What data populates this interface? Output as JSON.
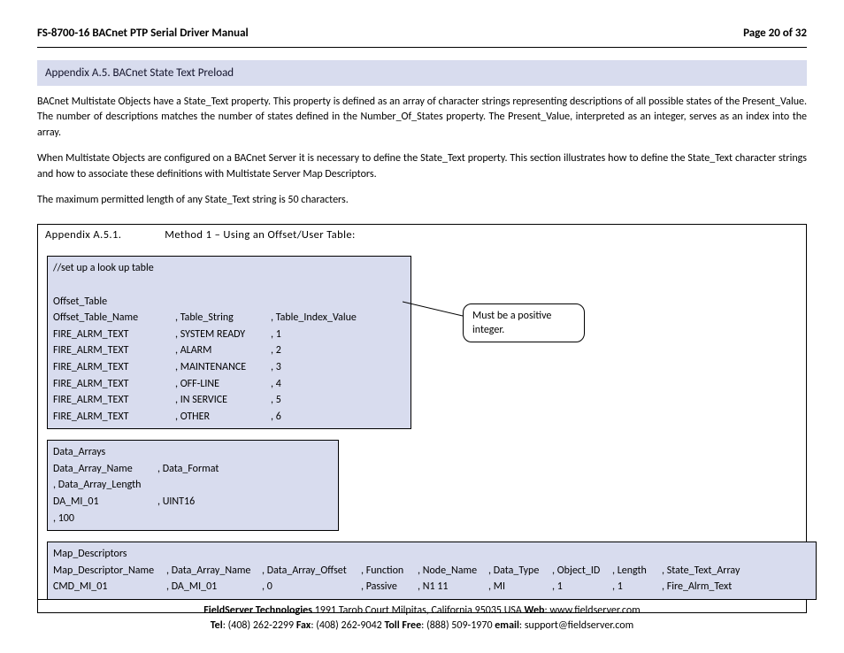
{
  "header": {
    "title": "FS-8700-16 BACnet PTP Serial Driver Manual",
    "page": "Page 20 of 32"
  },
  "section": {
    "title": "Appendix A.5.  BACnet State Text Preload",
    "para1": "BACnet Multistate Objects have a State_Text property.  This property is defined as an array of character strings representing descriptions of all possible states of the Present_Value. The number of descriptions matches the number of states defined in the Number_Of_States property. The Present_Value, interpreted as an integer, serves as an index into the array.",
    "para2": "When Multistate Objects are configured on a BACnet Server it is necessary to define the State_Text property. This section illustrates how to define the State_Text character strings and how to associate these definitions with Multistate Server Map Descriptors.",
    "para3": "The maximum permitted length of any State_Text string is 50 characters."
  },
  "subsection": {
    "left": "Appendix A.5.1.",
    "right": "Method 1 – Using an Offset/User Table:"
  },
  "callout": "Must be a positive integer.",
  "offset_table": {
    "comment": "//set up a look up table",
    "head": "Offset_Table",
    "cols": [
      "Offset_Table_Name",
      ", Table_String",
      ", Table_Index_Value"
    ],
    "rows": [
      [
        "FIRE_ALRM_TEXT",
        ", SYSTEM READY",
        ", 1"
      ],
      [
        "FIRE_ALRM_TEXT",
        ", ALARM",
        ", 2"
      ],
      [
        "FIRE_ALRM_TEXT",
        ", MAINTENANCE",
        ", 3"
      ],
      [
        "FIRE_ALRM_TEXT",
        ", OFF-LINE",
        ", 4"
      ],
      [
        "FIRE_ALRM_TEXT",
        ", IN SERVICE",
        ", 5"
      ],
      [
        "FIRE_ALRM_TEXT",
        ", OTHER",
        ", 6"
      ]
    ]
  },
  "data_arrays": {
    "head": "Data_Arrays",
    "cols": [
      "Data_Array_Name",
      ", Data_Format",
      ", Data_Array_Length"
    ],
    "rows": [
      [
        "DA_MI_01",
        ", UINT16",
        ", 100"
      ]
    ]
  },
  "map_descriptors": {
    "head": "Map_Descriptors",
    "cols": [
      "Map_Descriptor_Name",
      ", Data_Array_Name",
      ", Data_Array_Offset",
      ", Function",
      ", Node_Name",
      ", Data_Type",
      ", Object_ID",
      ", Length",
      ", State_Text_Array"
    ],
    "rows": [
      [
        "CMD_MI_01",
        ", DA_MI_01",
        ", 0",
        ", Passive",
        ", N1 11",
        ", MI",
        ", 1",
        ", 1",
        ", Fire_Alrm_Text"
      ]
    ]
  },
  "footer": {
    "line1a": "FieldServer Technologies",
    "line1b": " 1991 Tarob Court Milpitas, California 95035 USA   ",
    "web_label": "Web",
    "web": ": www.fieldserver.com",
    "tel_label": "Tel",
    "tel": ": (408) 262-2299   ",
    "fax_label": "Fax",
    "fax": ": (408) 262-9042   ",
    "toll_label": "Toll Free",
    "toll": ": (888) 509-1970   ",
    "email_label": "email",
    "email": ": support@fieldserver.com"
  },
  "layout": {
    "offset_cols_w": [
      138,
      108,
      150
    ],
    "data_cols_w": [
      118,
      96,
      110
    ],
    "map_cols_w": [
      128,
      108,
      112,
      64,
      80,
      72,
      68,
      56,
      110
    ]
  }
}
